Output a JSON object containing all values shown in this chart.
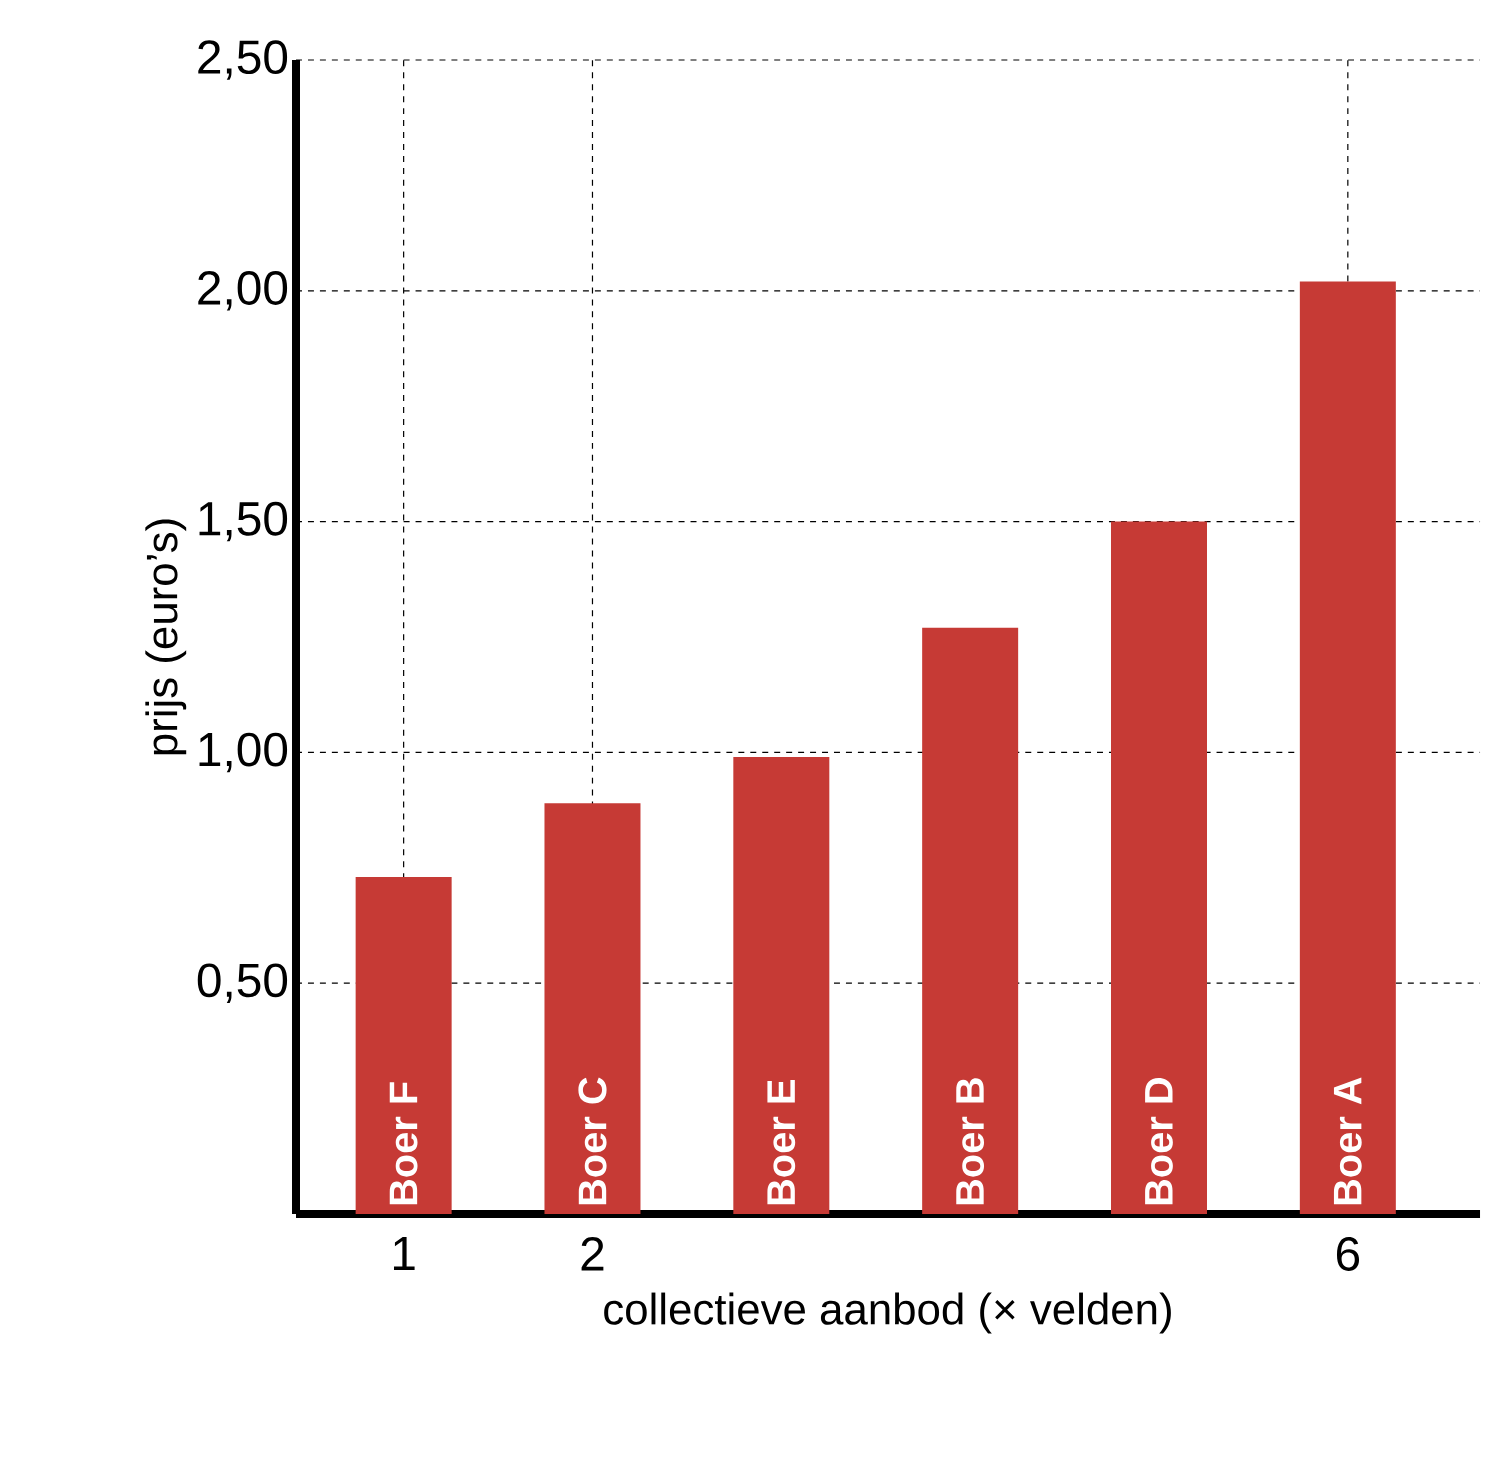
{
  "chart_data": {
    "type": "bar",
    "xlabel": "collectieve aanbod (× velden)",
    "ylabel": "prijs (euro’s)",
    "x": [
      1,
      2,
      3,
      4,
      5,
      6
    ],
    "values": [
      0.73,
      0.89,
      0.99,
      1.27,
      1.5,
      2.02
    ],
    "color": "#c63a35",
    "xlim": [
      0.43,
      6.7
    ],
    "xticks": [
      1,
      2,
      6
    ],
    "ylim": [
      0,
      2.5
    ],
    "yticks": [
      {
        "value": 0.5,
        "label": "0,50"
      },
      {
        "value": 1.0,
        "label": "1,00"
      },
      {
        "value": 1.5,
        "label": "1,50"
      },
      {
        "value": 2.0,
        "label": "2,00"
      },
      {
        "value": 2.5,
        "label": "2,50"
      }
    ],
    "grid": true,
    "value_labels": [
      "Boer F",
      "Boer C",
      "Boer E",
      "Boer B",
      "Boer D",
      "Boer A"
    ]
  }
}
